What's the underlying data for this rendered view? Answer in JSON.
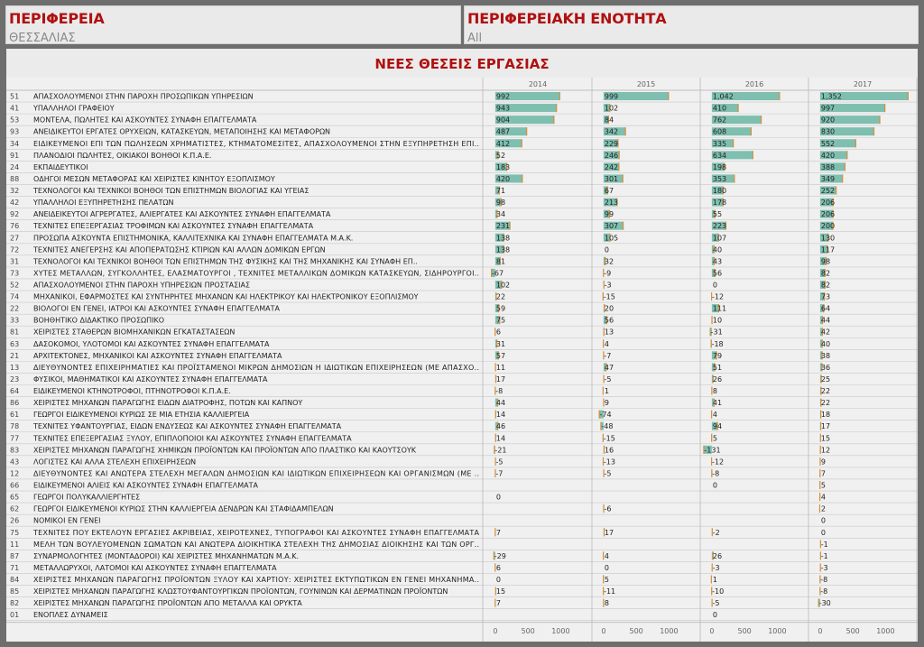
{
  "filters": {
    "region_label": "ΠΕΡΙΦΕΡΕΙΑ",
    "region_value": "ΘΕΣΣΑΛΙΑΣ",
    "unit_label": "ΠΕΡΙΦΕΡΕΙΑΚΗ ΕΝΟΤΗΤΑ",
    "unit_value": "All"
  },
  "colors": {
    "bar": "#7ebfb0",
    "bar_edge": "#d8903a",
    "title": "#b01010",
    "text": "#222222",
    "grid": "#c8c8c8"
  },
  "chart_data": {
    "type": "bar",
    "orientation": "horizontal",
    "title": "ΝΕΕΣ ΘΕΣΕΙΣ ΕΡΓΑΣΙΑΣ",
    "columns": [
      "2014",
      "2015",
      "2016",
      "2017"
    ],
    "xticks": [
      0,
      500,
      1000
    ],
    "xlim": [
      -150,
      1450
    ],
    "rows": [
      {
        "code": "51",
        "label": "ΑΠΑΣΧΟΛΟΥΜΕΝΟΙ ΣΤΗΝ ΠΑΡΟΧΗ ΠΡΟΣΩΠΙΚΩΝ ΥΠΗΡΕΣΙΩΝ",
        "values": [
          992,
          999,
          1042,
          1352
        ],
        "labels": [
          "992",
          "999",
          "1,042",
          "1,352"
        ]
      },
      {
        "code": "41",
        "label": "ΥΠΑΛΛΗΛΟΙ ΓΡΑΦΕΙΟΥ",
        "values": [
          943,
          102,
          410,
          997
        ],
        "labels": [
          "943",
          "102",
          "410",
          "997"
        ]
      },
      {
        "code": "53",
        "label": "ΜΟΝΤΕΛΑ, ΠΩΛΗΤΕΣ ΚΑΙ ΑΣΚΟΥΝΤΕΣ ΣΥΝΑΦΗ ΕΠΑΓΓΕΛΜΑΤΑ",
        "values": [
          904,
          84,
          762,
          920
        ],
        "labels": [
          "904",
          "84",
          "762",
          "920"
        ]
      },
      {
        "code": "93",
        "label": "ΑΝΕΙΔΙΚΕΥΤΟΙ ΕΡΓΑΤΕΣ ΟΡΥΧΕΙΩΝ, ΚΑΤΑΣΚΕΥΩΝ, ΜΕΤΑΠΟΙΗΣΗΣ ΚΑΙ ΜΕΤΑΦΟΡΩΝ",
        "values": [
          487,
          342,
          608,
          830
        ],
        "labels": [
          "487",
          "342",
          "608",
          "830"
        ]
      },
      {
        "code": "34",
        "label": "ΕΙΔΙΚΕΥΜΕΝΟΙ ΕΠΙ ΤΩΝ ΠΩΛΗΣΕΩΝ ΧΡΗΜΑΤΙΣΤΕΣ, ΚΤΗΜΑΤΟΜΕΣΙΤΕΣ, ΑΠΑΣΧΟΛΟΥΜΕΝΟΙ ΣΤΗΝ ΕΞΥΠΗΡΕΤΗΣΗ ΕΠΙ..",
        "values": [
          412,
          229,
          335,
          552
        ],
        "labels": [
          "412",
          "229",
          "335",
          "552"
        ]
      },
      {
        "code": "91",
        "label": "ΠΛΑΝΟΔΙΟΙ ΠΩΛΗΤΕΣ, ΟΙΚΙΑΚΟΙ ΒΟΗΘΟΙ Κ.Π.Α.Ε.",
        "values": [
          52,
          246,
          634,
          420
        ],
        "labels": [
          "52",
          "246",
          "634",
          "420"
        ]
      },
      {
        "code": "24",
        "label": "ΕΚΠΑΙΔΕΥΤΙΚΟΙ",
        "values": [
          183,
          242,
          198,
          388
        ],
        "labels": [
          "183",
          "242",
          "198",
          "388"
        ]
      },
      {
        "code": "88",
        "label": "ΟΔΗΓΟΙ ΜΕΣΩΝ ΜΕΤΑΦΟΡΑΣ ΚΑΙ ΧΕΙΡΙΣΤΕΣ ΚΙΝΗΤΟΥ ΕΞΟΠΛΙΣΜΟΥ",
        "values": [
          420,
          301,
          353,
          349
        ],
        "labels": [
          "420",
          "301",
          "353",
          "349"
        ]
      },
      {
        "code": "32",
        "label": "ΤΕΧΝΟΛΟΓΟΙ ΚΑΙ ΤΕΧΝΙΚΟΙ ΒΟΗΘΟΙ ΤΩΝ ΕΠΙΣΤΗΜΩΝ ΒΙΟΛΟΓΙΑΣ ΚΑΙ ΥΓΕΙΑΣ",
        "values": [
          71,
          67,
          180,
          252
        ],
        "labels": [
          "71",
          "67",
          "180",
          "252"
        ]
      },
      {
        "code": "42",
        "label": "ΥΠΑΛΛΗΛΟΙ ΕΞΥΠΗΡΕΤΗΣΗΣ ΠΕΛΑΤΩΝ",
        "values": [
          98,
          213,
          178,
          206
        ],
        "labels": [
          "98",
          "213",
          "178",
          "206"
        ]
      },
      {
        "code": "92",
        "label": "ΑΝΕΙΔΕΙΚΕΥΤΟΙ ΑΓΡΕΡΓΑΤΕΣ, ΑΛΙΕΡΓΑΤΕΣ ΚΑΙ ΑΣΚΟΥΝΤΕΣ ΣΥΝΑΦΗ ΕΠΑΓΓΕΛΜΑΤΑ",
        "values": [
          34,
          99,
          55,
          206
        ],
        "labels": [
          "34",
          "99",
          "55",
          "206"
        ]
      },
      {
        "code": "76",
        "label": "ΤΕΧΝΙΤΕΣ ΕΠΕΞΕΡΓΑΣΙΑΣ ΤΡΟΦΙΜΩΝ ΚΑΙ ΑΣΚΟΥΝΤΕΣ ΣΥΝΑΦΗ ΕΠΑΓΓΕΛΜΑΤΑ",
        "values": [
          231,
          307,
          223,
          200
        ],
        "labels": [
          "231",
          "307",
          "223",
          "200"
        ]
      },
      {
        "code": "27",
        "label": "ΠΡΟΣΩΠΑ ΑΣΚΟΥΝΤΑ ΕΠΙΣΤΗΜΟΝΙΚΑ, ΚΑΛΛΙΤΕΧΝΙΚΑ ΚΑΙ ΣΥΝΑΦΗ ΕΠΑΓΓΕΛΜΑΤΑ Μ.Α.Κ.",
        "values": [
          138,
          105,
          107,
          130
        ],
        "labels": [
          "138",
          "105",
          "107",
          "130"
        ]
      },
      {
        "code": "72",
        "label": "ΤΕΧΝΙΤΕΣ ΑΝΕΓΕΡΣΗΣ ΚΑΙ ΑΠΟΠΕΡΑΤΩΣΗΣ ΚΤΙΡΙΩΝ ΚΑΙ ΑΛΛΩΝ ΔΟΜΙΚΩΝ ΕΡΓΩΝ",
        "values": [
          138,
          0,
          40,
          117
        ],
        "labels": [
          "138",
          "0",
          "40",
          "117"
        ]
      },
      {
        "code": "31",
        "label": "ΤΕΧΝΟΛΟΓΟΙ ΚΑΙ ΤΕΧΝΙΚΟΙ ΒΟΗΘΟΙ ΤΩΝ ΕΠΙΣΤΗΜΩΝ ΤΗΣ ΦΥΣΙΚΗΣ ΚΑΙ ΤΗΣ ΜΗΧΑΝΙΚΗΣ ΚΑΙ ΣΥΝΑΦΗ ΕΠ..",
        "values": [
          81,
          32,
          43,
          98
        ],
        "labels": [
          "81",
          "32",
          "43",
          "98"
        ]
      },
      {
        "code": "73",
        "label": "ΧΥΤΕΣ ΜΕΤΑΛΛΩΝ, ΣΥΓΚΟΛΛΗΤΕΣ, ΕΛΑΣΜΑΤΟΥΡΓΟΙ , ΤΕΧΝΙΤΕΣ ΜΕΤΑΛΛΙΚΩΝ ΔΟΜΙΚΩΝ ΚΑΤΑΣΚΕΥΩΝ, ΣΙΔΗΡΟΥΡΓΟΙ..",
        "values": [
          -67,
          -9,
          56,
          82
        ],
        "labels": [
          "-67",
          "-9",
          "56",
          "82"
        ]
      },
      {
        "code": "52",
        "label": "ΑΠΑΣΧΟΛΟΥΜΕΝΟΙ ΣΤΗΝ ΠΑΡΟΧΗ ΥΠΗΡΕΣΙΩΝ ΠΡΟΣΤΑΣΙΑΣ",
        "values": [
          102,
          -3,
          0,
          82
        ],
        "labels": [
          "102",
          "-3",
          "0",
          "82"
        ]
      },
      {
        "code": "74",
        "label": "ΜΗΧΑΝΙΚΟΙ, ΕΦΑΡΜΟΣΤΕΣ ΚΑΙ ΣΥΝΤΗΡΗΤΕΣ  ΜΗΧΑΝΩΝ ΚΑΙ ΗΛΕΚΤΡΙΚΟΥ ΚΑΙ ΗΛΕΚΤΡΟΝΙΚΟΥ  ΕΞΟΠΛΙΣΜΟΥ",
        "values": [
          22,
          -15,
          -12,
          73
        ],
        "labels": [
          "22",
          "-15",
          "-12",
          "73"
        ]
      },
      {
        "code": "22",
        "label": "ΒΙΟΛΟΓΟΙ ΕΝ ΓΕΝΕΙ, ΙΑΤΡΟΙ ΚΑΙ ΑΣΚΟΥΝΤΕΣ ΣΥΝΑΦΗ ΕΠΑΓΓΕΛΜΑΤΑ",
        "values": [
          59,
          20,
          111,
          64
        ],
        "labels": [
          "59",
          "20",
          "111",
          "64"
        ]
      },
      {
        "code": "33",
        "label": "ΒΟΗΘΗΤΙΚΟ ΔΙΔΑΚΤΙΚΟ ΠΡΟΣΩΠΙΚΟ",
        "values": [
          75,
          56,
          10,
          44
        ],
        "labels": [
          "75",
          "56",
          "10",
          "44"
        ]
      },
      {
        "code": "81",
        "label": "ΧΕΙΡΙΣΤΕΣ ΣΤΑΘΕΡΩΝ ΒΙΟΜΗΧΑΝΙΚΩΝ ΕΓΚΑΤΑΣΤΑΣΕΩΝ",
        "values": [
          6,
          13,
          -31,
          42
        ],
        "labels": [
          "6",
          "13",
          "-31",
          "42"
        ]
      },
      {
        "code": "63",
        "label": "ΔΑΣΟΚΟΜΟΙ, ΥΛΟΤΟΜΟΙ ΚΑΙ ΑΣΚΟΥΝΤΕΣ ΣΥΝΑΦΗ ΕΠΑΓΓΕΛΜΑΤΑ",
        "values": [
          31,
          4,
          -18,
          40
        ],
        "labels": [
          "31",
          "4",
          "-18",
          "40"
        ]
      },
      {
        "code": "21",
        "label": "ΑΡΧΙΤΕΚΤΟΝΕΣ, ΜΗΧΑΝΙΚΟΙ ΚΑΙ ΑΣΚΟΥΝΤΕΣ ΣΥΝΑΦΗ ΕΠΑΓΓΕΛΜΑΤΑ",
        "values": [
          57,
          -7,
          79,
          38
        ],
        "labels": [
          "57",
          "-7",
          "79",
          "38"
        ]
      },
      {
        "code": "13",
        "label": "ΔΙΕΥΘΥΝΟΝΤΕΣ ΕΠΙΧΕΙΡΗΜΑΤΙΕΣ ΚΑΙ ΠΡΟΪΣΤΑΜΕΝΟΙ ΜΙΚΡΩΝ ΔΗΜΟΣΙΩΝ Η ΙΔΙΩΤΙΚΩΝ ΕΠΙΧΕΙΡΗΣΕΩΝ (ΜΕ ΑΠΑΣΧΟ..",
        "values": [
          11,
          47,
          51,
          36
        ],
        "labels": [
          "11",
          "47",
          "51",
          "36"
        ]
      },
      {
        "code": "23",
        "label": "ΦΥΣΙΚΟΙ, ΜΑΘΗΜΑΤΙΚΟΙ ΚΑΙ ΑΣΚΟΥΝΤΕΣ ΣΥΝΑΦΗ ΕΠΑΓΓΕΛΜΑΤΑ",
        "values": [
          17,
          -5,
          26,
          25
        ],
        "labels": [
          "17",
          "-5",
          "26",
          "25"
        ]
      },
      {
        "code": "64",
        "label": "ΕΙΔΙΚΕΥΜΕΝΟΙ ΚΤΗΝΟΤΡΟΦΟΙ, ΠΤΗΝΟΤΡΟΦΟΙ Κ.Π.Α.Ε.",
        "values": [
          -8,
          1,
          8,
          22
        ],
        "labels": [
          "-8",
          "1",
          "8",
          "22"
        ]
      },
      {
        "code": "86",
        "label": "ΧΕΙΡΙΣΤΕΣ ΜΗΧΑΝΩΝ ΠΑΡΑΓΩΓΗΣ ΕΙΔΩΝ ΔΙΑΤΡΟΦΗΣ, ΠΟΤΩΝ ΚΑΙ ΚΑΠΝΟΥ",
        "values": [
          44,
          9,
          41,
          22
        ],
        "labels": [
          "44",
          "9",
          "41",
          "22"
        ]
      },
      {
        "code": "61",
        "label": "ΓΕΩΡΓΟΙ ΕΙΔΙΚΕΥΜΕΝΟΙ ΚΥΡΙΩΣ ΣΕ ΜΙΑ ΕΤΗΣΙΑ ΚΑΛΛΙΕΡΓΕΙΑ",
        "values": [
          14,
          -74,
          4,
          18
        ],
        "labels": [
          "14",
          "-74",
          "4",
          "18"
        ]
      },
      {
        "code": "78",
        "label": "ΤΕΧΝΙΤΕΣ ΥΦΑΝΤΟΥΡΓΙΑΣ, ΕΙΔΩΝ ΕΝΔΥΣΕΩΣ ΚΑΙ ΑΣΚΟΥΝΤΕΣ ΣΥΝΑΦΗ ΕΠΑΓΓΕΛΜΑΤΑ",
        "values": [
          46,
          -48,
          94,
          17
        ],
        "labels": [
          "46",
          "-48",
          "94",
          "17"
        ]
      },
      {
        "code": "77",
        "label": "ΤΕΧΝΙΤΕΣ ΕΠΕΞΕΡΓΑΣΙΑΣ ΞΥΛΟΥ, ΕΠΙΠΛΟΠΟΙΟΙ ΚΑΙ ΑΣΚΟΥΝΤΕΣ ΣΥΝΑΦΗ ΕΠΑΓΓΕΛΜΑΤΑ",
        "values": [
          14,
          -15,
          5,
          15
        ],
        "labels": [
          "14",
          "-15",
          "5",
          "15"
        ]
      },
      {
        "code": "83",
        "label": "ΧΕΙΡΙΣΤΕΣ ΜΗΧΑΝΩΝ ΠΑΡΑΓΩΓΗΣ ΧΗΜΙΚΩΝ ΠΡΟΪΟΝΤΩΝ ΚΑΙ ΠΡΟΪΟΝΤΩΝ ΑΠΟ ΠΛΑΣΤΙΚΟ ΚΑΙ ΚΑΟΥΤΣΟΥΚ",
        "values": [
          -21,
          16,
          -131,
          12
        ],
        "labels": [
          "-21",
          "16",
          "-131",
          "12"
        ]
      },
      {
        "code": "43",
        "label": "ΛΟΓΙΣΤΕΣ ΚΑΙ ΑΛΛΑ ΣΤΕΛΕΧΗ ΕΠΙΧΕΙΡΗΣΕΩΝ",
        "values": [
          -5,
          -13,
          -12,
          9
        ],
        "labels": [
          "-5",
          "-13",
          "-12",
          "9"
        ]
      },
      {
        "code": "12",
        "label": "ΔΙΕΥΘΥΝΟΝΤΕΣ ΚΑΙ ΑΝΩΤΕΡΑ ΣΤΕΛΕΧΗ ΜΕΓΑΛΩΝ ΔΗΜΟΣΙΩΝ ΚΑΙ ΙΔΙΩΤΙΚΩΝ ΕΠΙΧΕΙΡΗΣΕΩΝ ΚΑΙ ΟΡΓΑΝΙΣΜΩΝ (ΜΕ ..",
        "values": [
          -7,
          -5,
          -8,
          7
        ],
        "labels": [
          "-7",
          "-5",
          "-8",
          "7"
        ]
      },
      {
        "code": "66",
        "label": "ΕΙΔΙΚΕΥΜΕΝΟΙ ΑΛΙΕΙΣ ΚΑΙ ΑΣΚΟΥΝΤΕΣ ΣΥΝΑΦΗ ΕΠΑΓΓΕΛΜΑΤΑ",
        "values": [
          null,
          null,
          0,
          5
        ],
        "labels": [
          "",
          "",
          "0",
          "5"
        ]
      },
      {
        "code": "65",
        "label": "ΓΕΩΡΓΟΙ ΠΟΛΥΚΑΛΛΙΕΡΓΗΤΕΣ",
        "values": [
          0,
          null,
          null,
          4
        ],
        "labels": [
          "0",
          "",
          "",
          "4"
        ]
      },
      {
        "code": "62",
        "label": "ΓΕΩΡΓΟΙ ΕΙΔΙΚΕΥΜΕΝΟΙ ΚΥΡΙΩΣ ΣΤΗΝ ΚΑΛΛΙΕΡΓΕΙΑ ΔΕΝΔΡΩΝ ΚΑΙ ΣΤΑΦΙΔΑΜΠΕΛΩΝ",
        "values": [
          null,
          -6,
          null,
          2
        ],
        "labels": [
          "",
          "-6",
          "",
          "2"
        ]
      },
      {
        "code": "26",
        "label": "ΝΟΜΙΚΟΙ ΕΝ ΓΕΝΕΙ",
        "values": [
          null,
          null,
          null,
          0
        ],
        "labels": [
          "",
          "",
          "",
          "0"
        ]
      },
      {
        "code": "75",
        "label": "ΤΕΧΝΙΤΕΣ ΠΟΥ ΕΚΤΕΛΟΥΝ ΕΡΓΑΣΙΕΣ ΑΚΡΙΒΕΙΑΣ, ΧΕΙΡΟΤΕΧΝΕΣ, ΤΥΠΟΓΡΑΦΟΙ ΚΑΙ ΑΣΚΟΥΝΤΕΣ ΣΥΝΑΦΗ ΕΠΑΓΓΕΛΜΑΤΑ",
        "values": [
          7,
          17,
          -2,
          0
        ],
        "labels": [
          "7",
          "17",
          "-2",
          "0"
        ]
      },
      {
        "code": "11",
        "label": "ΜΕΛΗ ΤΩΝ ΒΟΥΛΕΥΟΜΕΝΩΝ ΣΩΜΑΤΩΝ ΚΑΙ ΑΝΩΤΕΡΑ ΔΙΟΙΚΗΤΙΚΑ ΣΤΕΛΕΧΗ ΤΗΣ ΔΗΜΟΣΙΑΣ ΔΙΟΙΚΗΣΗΣ ΚΑΙ ΤΩΝ ΟΡΓ..",
        "values": [
          null,
          null,
          null,
          -1
        ],
        "labels": [
          "",
          "",
          "",
          "-1"
        ]
      },
      {
        "code": "87",
        "label": "ΣΥΝΑΡΜΟΛΟΓΗΤΕΣ (ΜΟΝΤΑΔΟΡΟΙ) ΚΑΙ ΧΕΙΡΙΣΤΕΣ ΜΗΧΑΝΗΜΑΤΩΝ Μ.Α.Κ.",
        "values": [
          -29,
          4,
          26,
          -1
        ],
        "labels": [
          "-29",
          "4",
          "26",
          "-1"
        ]
      },
      {
        "code": "71",
        "label": "ΜΕΤΑΛΛΩΡΥΧΟΙ, ΛΑΤΟΜΟΙ ΚΑΙ ΑΣΚΟΥΝΤΕΣ ΣΥΝΑΦΗ ΕΠΑΓΓΕΛΜΑΤΑ",
        "values": [
          6,
          0,
          -3,
          -3
        ],
        "labels": [
          "6",
          "0",
          "-3",
          "-3"
        ]
      },
      {
        "code": "84",
        "label": "ΧΕΙΡΙΣΤΕΣ ΜΗΧΑΝΩΝ ΠΑΡΑΓΩΓΗΣ ΠΡΟΪΟΝΤΩΝ ΞΥΛΟΥ ΚΑΙ ΧΑΡΤΙΟΥ: ΧΕΙΡΙΣΤΕΣ ΕΚΤΥΠΩΤΙΚΩΝ ΕΝ ΓΕΝΕΙ ΜΗΧΑΝΗΜΑ..",
        "values": [
          0,
          5,
          1,
          -8
        ],
        "labels": [
          "0",
          "5",
          "1",
          "-8"
        ]
      },
      {
        "code": "85",
        "label": "ΧΕΙΡΙΣΤΕΣ ΜΗΧΑΝΩΝ ΠΑΡΑΓΩΓΗΣ ΚΛΩΣΤΟΥΦΑΝΤΟΥΡΓΙΚΩΝ ΠΡΟΪΟΝΤΩΝ, ΓΟΥΝΙΝΩΝ ΚΑΙ ΔΕΡΜΑΤΙΝΩΝ ΠΡΟΪΟΝΤΩΝ",
        "values": [
          15,
          -11,
          -10,
          -8
        ],
        "labels": [
          "15",
          "-11",
          "-10",
          "-8"
        ]
      },
      {
        "code": "82",
        "label": "ΧΕΙΡΙΣΤΕΣ ΜΗΧΑΝΩΝ ΠΑΡΑΓΩΓΗΣ ΠΡΟΪΟΝΤΩΝ ΑΠΟ ΜΕΤΑΛΛΑ ΚΑΙ ΟΡΥΚΤΑ",
        "values": [
          7,
          8,
          -5,
          -30
        ],
        "labels": [
          "7",
          "8",
          "-5",
          "-30"
        ]
      },
      {
        "code": "01",
        "label": "ΕΝΟΠΛΕΣ ΔΥΝΑΜΕΙΣ",
        "values": [
          null,
          0,
          0,
          null
        ],
        "labels": [
          "",
          "",
          "0",
          ""
        ]
      }
    ]
  }
}
